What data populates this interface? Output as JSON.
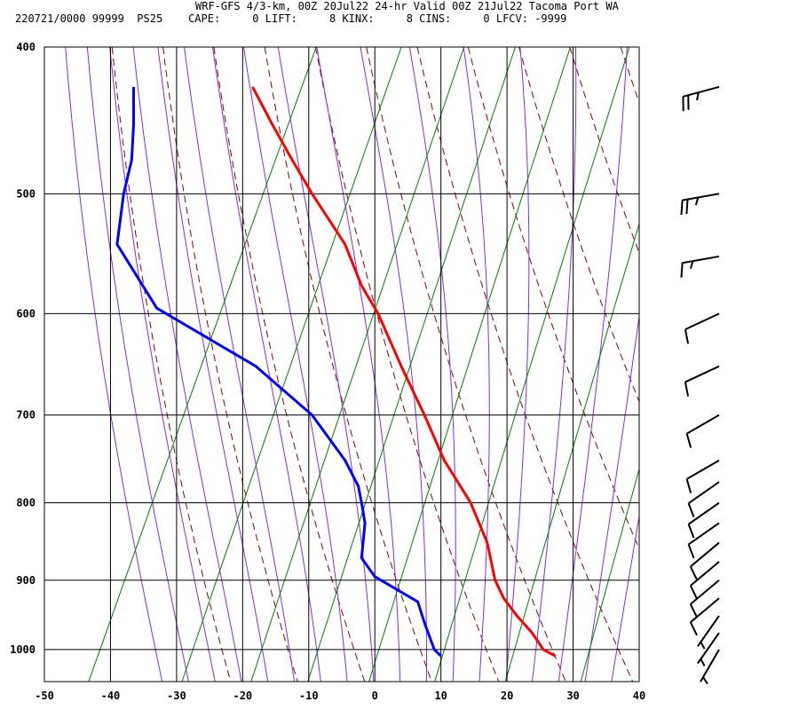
{
  "header": {
    "line1": "WRF-GFS 4/3-km, 00Z 20Jul22 24-hr Valid 00Z 21Jul22 Tacoma Port WA",
    "line2": "220721/0000 99999  PS25    CAPE:     0 LIFT:     8 KINX:     8 CINS:     0 LFCV: -9999"
  },
  "chart_data": {
    "type": "line",
    "title": "",
    "xlabel": "",
    "ylabel": "",
    "x_ticks": [
      -50,
      -40,
      -30,
      -20,
      -10,
      0,
      10,
      20,
      30,
      40
    ],
    "x_tick_labels": [
      "-50",
      "-40",
      "-30",
      "-20",
      "-10",
      "0",
      "10",
      "20",
      "30",
      "40"
    ],
    "y_ticks": [
      400,
      500,
      600,
      700,
      800,
      900,
      1000
    ],
    "y_tick_labels": [
      "400",
      "500",
      "600",
      "700",
      "800",
      "900",
      "1000"
    ],
    "xlim": [
      -50,
      40
    ],
    "ylim": [
      400,
      1050
    ],
    "y_scale": "log",
    "grid": true,
    "series": [
      {
        "color": "#ff0000",
        "points": [
          {
            "p": 425,
            "t": -18.5
          },
          {
            "p": 450,
            "t": -15.5
          },
          {
            "p": 475,
            "t": -12.5
          },
          {
            "p": 500,
            "t": -9.5
          },
          {
            "p": 540,
            "t": -4.5
          },
          {
            "p": 575,
            "t": -2
          },
          {
            "p": 600,
            "t": 0.5
          },
          {
            "p": 650,
            "t": 4
          },
          {
            "p": 700,
            "t": 7.5
          },
          {
            "p": 750,
            "t": 10.5
          },
          {
            "p": 800,
            "t": 14.5
          },
          {
            "p": 850,
            "t": 17
          },
          {
            "p": 900,
            "t": 18.2
          },
          {
            "p": 925,
            "t": 19.5
          },
          {
            "p": 950,
            "t": 21.5
          },
          {
            "p": 975,
            "t": 23.8
          },
          {
            "p": 1000,
            "t": 25.5
          },
          {
            "p": 1010,
            "t": 27.3
          }
        ]
      },
      {
        "color": "#0000ff",
        "points": [
          {
            "p": 425,
            "t": -36.5
          },
          {
            "p": 450,
            "t": -36.5
          },
          {
            "p": 475,
            "t": -36.8
          },
          {
            "p": 500,
            "t": -38
          },
          {
            "p": 540,
            "t": -39
          },
          {
            "p": 595,
            "t": -33
          },
          {
            "p": 650,
            "t": -18
          },
          {
            "p": 700,
            "t": -9.5
          },
          {
            "p": 750,
            "t": -4.5
          },
          {
            "p": 780,
            "t": -2.5
          },
          {
            "p": 800,
            "t": -2
          },
          {
            "p": 825,
            "t": -1.5
          },
          {
            "p": 870,
            "t": -2
          },
          {
            "p": 895,
            "t": 0
          },
          {
            "p": 930,
            "t": 6.5
          },
          {
            "p": 960,
            "t": 7.5
          },
          {
            "p": 1000,
            "t": 9
          },
          {
            "p": 1010,
            "t": 10
          }
        ]
      }
    ],
    "background_lines": {
      "isotherm_color": "#000000",
      "dry_adiabat_color": "#8b0000",
      "moist_adiabat_color": "#8a2be2",
      "mixing_ratio_color": "#008000"
    },
    "wind_barbs": [
      {
        "p": 425,
        "dir": 255,
        "kt": 25
      },
      {
        "p": 500,
        "dir": 260,
        "kt": 25
      },
      {
        "p": 550,
        "dir": 260,
        "kt": 15
      },
      {
        "p": 600,
        "dir": 245,
        "kt": 10
      },
      {
        "p": 650,
        "dir": 245,
        "kt": 10
      },
      {
        "p": 700,
        "dir": 240,
        "kt": 10
      },
      {
        "p": 750,
        "dir": 240,
        "kt": 10
      },
      {
        "p": 775,
        "dir": 235,
        "kt": 10
      },
      {
        "p": 800,
        "dir": 235,
        "kt": 10
      },
      {
        "p": 825,
        "dir": 235,
        "kt": 10
      },
      {
        "p": 850,
        "dir": 230,
        "kt": 10
      },
      {
        "p": 875,
        "dir": 230,
        "kt": 10
      },
      {
        "p": 900,
        "dir": 230,
        "kt": 10
      },
      {
        "p": 925,
        "dir": 230,
        "kt": 10
      },
      {
        "p": 950,
        "dir": 215,
        "kt": 5
      },
      {
        "p": 975,
        "dir": 215,
        "kt": 5
      },
      {
        "p": 1000,
        "dir": 210,
        "kt": 5
      }
    ]
  }
}
